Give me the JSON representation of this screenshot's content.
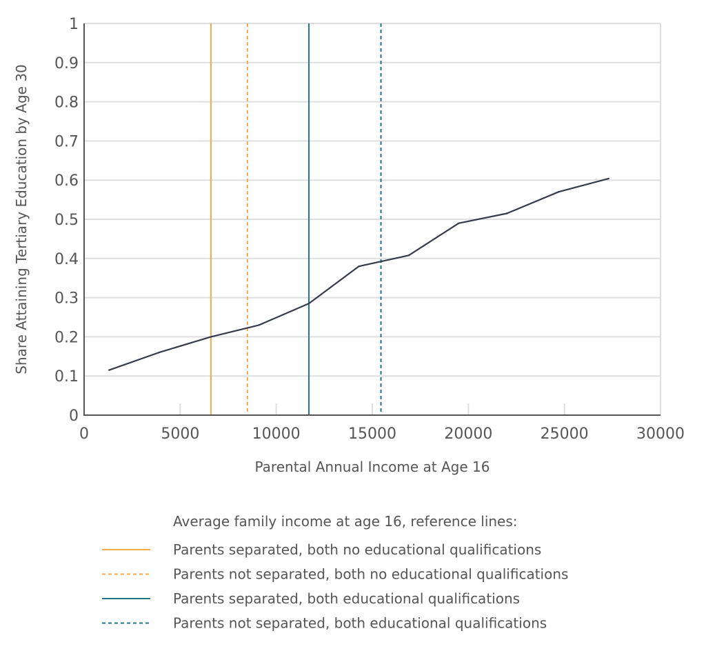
{
  "chart_data": {
    "type": "line",
    "xlabel": "Parental Annual Income at Age 16",
    "ylabel": "Share Attaining Tertiary Education by Age 30",
    "xlim": [
      0,
      30000
    ],
    "ylim": [
      0,
      1
    ],
    "x_ticks": [
      "0",
      "5000",
      "10000",
      "15000",
      "20000",
      "25000",
      "30000"
    ],
    "y_ticks": [
      "0",
      "0.1",
      "0.2",
      "0.3",
      "0.4",
      "0.5",
      "0.6",
      "0.7",
      "0.8",
      "0.9",
      "1"
    ],
    "grid": "horizontal",
    "series": [
      {
        "color": "#353a4d",
        "x": [
          1300,
          3900,
          6600,
          9100,
          11700,
          14300,
          16900,
          19500,
          22000,
          24700,
          27300
        ],
        "y": [
          0.115,
          0.16,
          0.2,
          0.23,
          0.285,
          0.38,
          0.408,
          0.49,
          0.515,
          0.57,
          0.604
        ]
      }
    ],
    "reference_lines": [
      {
        "label": "Parents separated, both no educational qualifications",
        "x": 6600,
        "color": "#f5a947",
        "style": "solid"
      },
      {
        "label": "Parents not separated, both no educational qualifications",
        "x": 8500,
        "color": "#f5a947",
        "style": "dashed"
      },
      {
        "label": "Parents separated, both educational qualifications",
        "x": 11700,
        "color": "#1f7587",
        "style": "solid"
      },
      {
        "label": "Parents not separated, both educational qualifications",
        "x": 15450,
        "color": "#1f7587",
        "style": "dashed"
      }
    ],
    "legend": {
      "title": "Average family income at age 16, reference lines:",
      "placement": "bottom"
    }
  }
}
